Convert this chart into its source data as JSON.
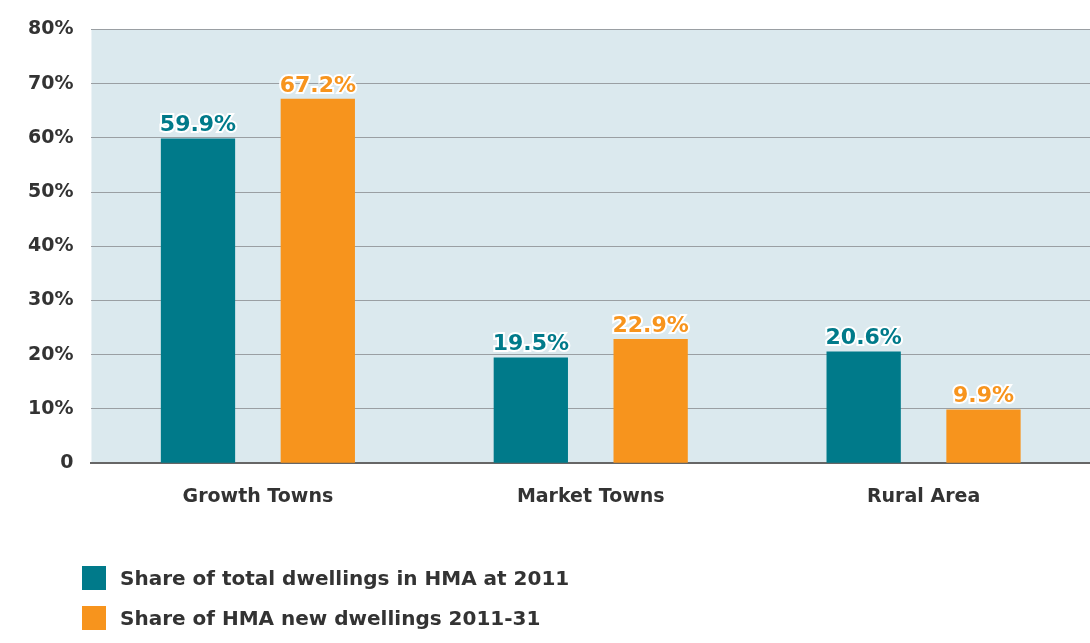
{
  "chart_data": {
    "type": "bar",
    "categories": [
      "Growth Towns",
      "Market Towns",
      "Rural Area"
    ],
    "series": [
      {
        "name": "Share of total dwellings in HMA at 2011",
        "color": "#007a8a",
        "values": [
          59.9,
          19.5,
          20.6
        ],
        "value_labels": [
          "59.9%",
          "19.5%",
          "20.6%"
        ]
      },
      {
        "name": "Share of HMA new dwellings 2011-31",
        "color": "#f7941d",
        "values": [
          67.2,
          22.9,
          9.9
        ],
        "value_labels": [
          "67.2%",
          "22.9%",
          "9.9%"
        ]
      }
    ],
    "ylim": [
      0,
      80
    ],
    "yticks": [
      0,
      {
        "value": 10,
        "label": "10%"
      },
      {
        "value": 20,
        "label": "20%"
      },
      {
        "value": 30,
        "label": "30%"
      },
      {
        "value": 40,
        "label": "40%"
      },
      {
        "value": 50,
        "label": "50%"
      },
      {
        "value": 60,
        "label": "60%"
      },
      {
        "value": 70,
        "label": "70%"
      },
      {
        "value": 80,
        "label": "80%"
      }
    ],
    "grid": "y",
    "legend": "bottom left"
  }
}
